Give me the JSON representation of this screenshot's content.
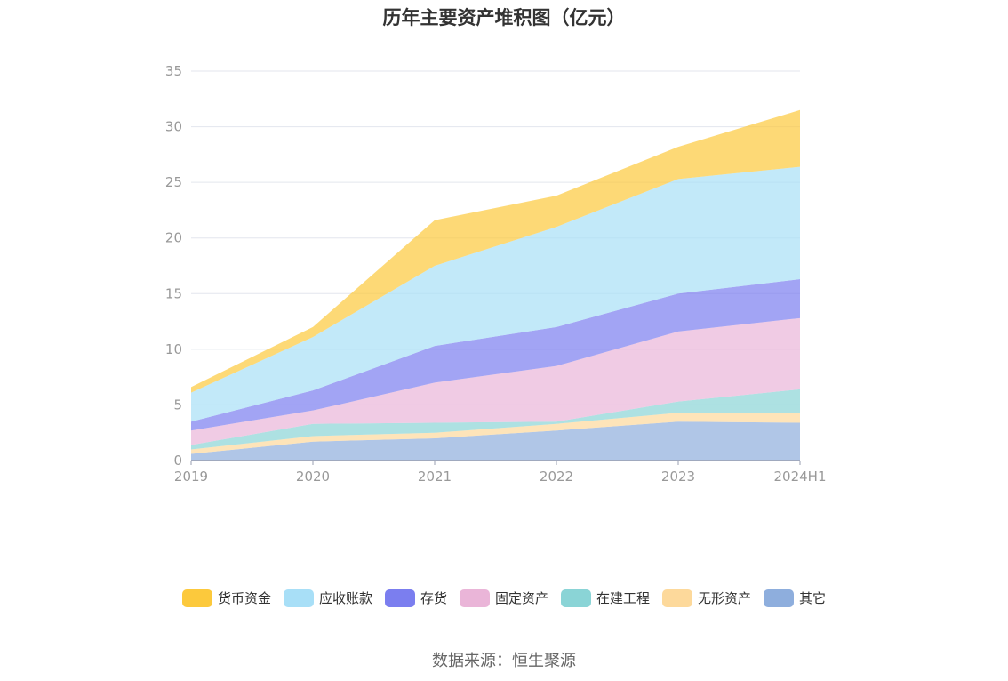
{
  "chart_data": {
    "type": "area",
    "stacked": true,
    "title": "历年主要资产堆积图（亿元）",
    "x": [
      "2019",
      "2020",
      "2021",
      "2022",
      "2023",
      "2024H1"
    ],
    "ylim": [
      0,
      35
    ],
    "yticks": [
      0,
      5,
      10,
      15,
      20,
      25,
      30,
      35
    ],
    "grid": true,
    "legend_position": "bottom",
    "series": [
      {
        "name": "其它",
        "color": "#8EAEDD",
        "values": [
          0.6,
          1.7,
          2.0,
          2.7,
          3.5,
          3.4
        ]
      },
      {
        "name": "无形资产",
        "color": "#FDD99B",
        "values": [
          0.4,
          0.5,
          0.5,
          0.6,
          0.8,
          0.9
        ]
      },
      {
        "name": "在建工程",
        "color": "#8AD4D6",
        "values": [
          0.4,
          1.1,
          0.9,
          0.2,
          1.0,
          2.1
        ]
      },
      {
        "name": "固定资产",
        "color": "#EAB5D8",
        "values": [
          1.3,
          1.2,
          3.6,
          5.0,
          6.3,
          6.4
        ]
      },
      {
        "name": "存货",
        "color": "#7B7EEF",
        "values": [
          0.8,
          1.8,
          3.3,
          3.5,
          3.4,
          3.5
        ]
      },
      {
        "name": "应收账款",
        "color": "#A8DFF7",
        "values": [
          2.6,
          4.8,
          7.2,
          9.0,
          10.3,
          10.1
        ]
      },
      {
        "name": "货币资金",
        "color": "#FCC93C",
        "values": [
          0.5,
          0.9,
          4.1,
          2.8,
          2.9,
          5.1
        ]
      }
    ]
  },
  "legend_order": [
    {
      "label": "货币资金",
      "color": "#FCC93C"
    },
    {
      "label": "应收账款",
      "color": "#A8DFF7"
    },
    {
      "label": "存货",
      "color": "#7B7EEF"
    },
    {
      "label": "固定资产",
      "color": "#EAB5D8"
    },
    {
      "label": "在建工程",
      "color": "#8AD4D6"
    },
    {
      "label": "无形资产",
      "color": "#FDD99B"
    },
    {
      "label": "其它",
      "color": "#8EAEDD"
    }
  ],
  "source": "数据来源：恒生聚源"
}
